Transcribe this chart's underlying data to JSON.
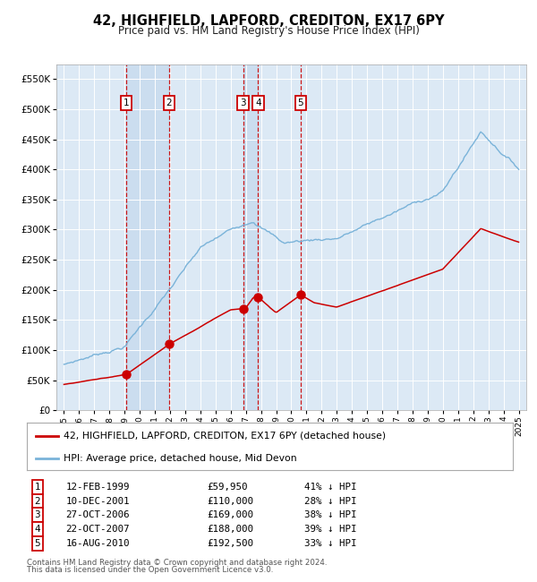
{
  "title": "42, HIGHFIELD, LAPFORD, CREDITON, EX17 6PY",
  "subtitle": "Price paid vs. HM Land Registry's House Price Index (HPI)",
  "xlim": [
    1994.5,
    2025.5
  ],
  "ylim": [
    0,
    575000
  ],
  "yticks": [
    0,
    50000,
    100000,
    150000,
    200000,
    250000,
    300000,
    350000,
    400000,
    450000,
    500000,
    550000
  ],
  "ytick_labels": [
    "£0",
    "£50K",
    "£100K",
    "£150K",
    "£200K",
    "£250K",
    "£300K",
    "£350K",
    "£400K",
    "£450K",
    "£500K",
    "£550K"
  ],
  "background_color": "#dce9f5",
  "grid_color": "#ffffff",
  "transactions": [
    {
      "num": 1,
      "date_label": "12-FEB-1999",
      "price": 59950,
      "pct": "41% ↓ HPI",
      "year": 1999.12
    },
    {
      "num": 2,
      "date_label": "10-DEC-2001",
      "price": 110000,
      "pct": "28% ↓ HPI",
      "year": 2001.94
    },
    {
      "num": 3,
      "date_label": "27-OCT-2006",
      "price": 169000,
      "pct": "38% ↓ HPI",
      "year": 2006.82
    },
    {
      "num": 4,
      "date_label": "22-OCT-2007",
      "price": 188000,
      "pct": "39% ↓ HPI",
      "year": 2007.81
    },
    {
      "num": 5,
      "date_label": "16-AUG-2010",
      "price": 192500,
      "pct": "33% ↓ HPI",
      "year": 2010.62
    }
  ],
  "hpi_color": "#7ab3d9",
  "price_color": "#cc0000",
  "vline_color": "#cc0000",
  "legend_label_price": "42, HIGHFIELD, LAPFORD, CREDITON, EX17 6PY (detached house)",
  "legend_label_hpi": "HPI: Average price, detached house, Mid Devon",
  "footer1": "Contains HM Land Registry data © Crown copyright and database right 2024.",
  "footer2": "This data is licensed under the Open Government Licence v3.0."
}
